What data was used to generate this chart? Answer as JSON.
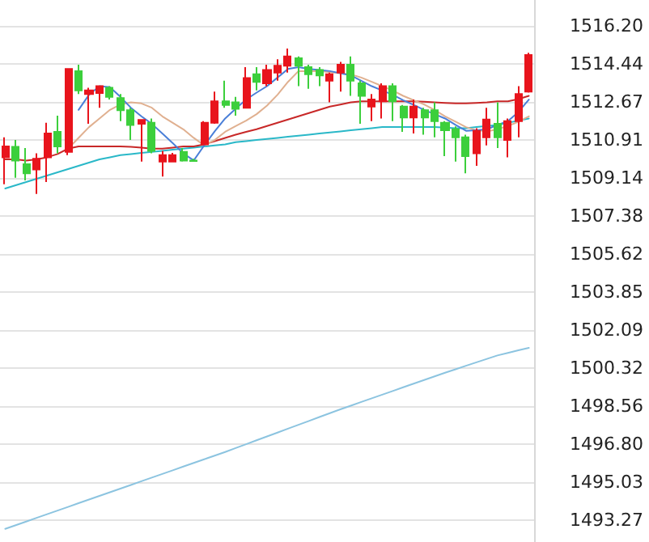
{
  "chart_data": {
    "type": "candlestick",
    "categories": [
      null,
      null,
      null,
      null,
      null,
      null,
      null,
      null,
      null,
      null,
      null,
      null,
      null,
      null,
      null,
      null,
      null,
      null,
      null,
      null,
      null,
      null,
      null,
      null,
      null,
      null,
      null,
      null,
      null,
      null,
      null,
      null,
      null,
      null,
      null,
      null,
      null,
      null,
      null,
      null,
      null,
      null,
      null,
      null,
      null,
      null,
      null,
      null,
      null,
      null,
      null
    ],
    "ohlc": [
      [
        1510.1,
        1511.03,
        1508.85,
        1510.6
      ],
      [
        1510.58,
        1510.9,
        1509.15,
        1509.95
      ],
      [
        1509.78,
        1510.53,
        1509.03,
        1509.35
      ],
      [
        1509.53,
        1510.28,
        1508.4,
        1510.03
      ],
      [
        1510.1,
        1511.7,
        1508.95,
        1511.2
      ],
      [
        1511.28,
        1512.03,
        1510.28,
        1510.6
      ],
      [
        1510.35,
        1514.2,
        1510.2,
        1514.2
      ],
      [
        1514.1,
        1514.4,
        1513.03,
        1513.2
      ],
      [
        1513.03,
        1513.33,
        1511.65,
        1513.2
      ],
      [
        1513.08,
        1513.4,
        1512.4,
        1513.4
      ],
      [
        1513.33,
        1513.4,
        1512.78,
        1512.9
      ],
      [
        1512.85,
        1513.03,
        1511.78,
        1512.28
      ],
      [
        1512.28,
        1512.4,
        1510.9,
        1511.6
      ],
      [
        1511.65,
        1511.83,
        1509.9,
        1511.83
      ],
      [
        1511.7,
        1511.9,
        1510.28,
        1510.4
      ],
      [
        1509.9,
        1510.4,
        1509.2,
        1510.2
      ],
      [
        1509.9,
        1510.3,
        1509.9,
        1510.2
      ],
      [
        1510.35,
        1510.53,
        1509.9,
        1509.95
      ],
      [
        1509.95,
        1510.03,
        1509.9,
        1509.93
      ],
      [
        1510.7,
        1511.78,
        1510.65,
        1511.7
      ],
      [
        1511.7,
        1513.15,
        1511.65,
        1512.7
      ],
      [
        1512.7,
        1513.65,
        1512.4,
        1512.53
      ],
      [
        1512.65,
        1512.9,
        1512.03,
        1512.35
      ],
      [
        1512.4,
        1514.28,
        1512.4,
        1513.78
      ],
      [
        1513.95,
        1514.28,
        1513.2,
        1513.6
      ],
      [
        1513.53,
        1514.4,
        1513.4,
        1514.15
      ],
      [
        1514.03,
        1514.65,
        1513.65,
        1514.35
      ],
      [
        1514.35,
        1515.15,
        1514.03,
        1514.78
      ],
      [
        1514.7,
        1514.78,
        1513.4,
        1514.35
      ],
      [
        1514.28,
        1514.4,
        1513.28,
        1513.95
      ],
      [
        1514.15,
        1514.28,
        1513.4,
        1513.9
      ],
      [
        1513.65,
        1514.03,
        1512.65,
        1513.95
      ],
      [
        1514.03,
        1514.53,
        1513.15,
        1514.4
      ],
      [
        1514.4,
        1514.78,
        1512.95,
        1513.65
      ],
      [
        1513.53,
        1513.65,
        1511.65,
        1512.95
      ],
      [
        1512.45,
        1513.03,
        1511.78,
        1512.78
      ],
      [
        1512.7,
        1513.53,
        1511.9,
        1513.4
      ],
      [
        1513.4,
        1513.53,
        1511.78,
        1512.7
      ],
      [
        1512.45,
        1512.53,
        1511.28,
        1511.95
      ],
      [
        1511.95,
        1512.78,
        1511.2,
        1512.45
      ],
      [
        1512.28,
        1512.4,
        1511.15,
        1511.95
      ],
      [
        1512.28,
        1512.65,
        1511.03,
        1511.78
      ],
      [
        1511.7,
        1511.78,
        1510.15,
        1511.35
      ],
      [
        1511.4,
        1511.53,
        1509.9,
        1511.03
      ],
      [
        1511.03,
        1511.15,
        1509.35,
        1510.15
      ],
      [
        1510.28,
        1511.45,
        1509.7,
        1511.33
      ],
      [
        1511.03,
        1512.4,
        1510.65,
        1511.85
      ],
      [
        1511.65,
        1512.65,
        1510.53,
        1511.03
      ],
      [
        1510.9,
        1511.9,
        1510.1,
        1511.78
      ],
      [
        1511.78,
        1513.4,
        1511.03,
        1513.03
      ],
      [
        1513.15,
        1514.95,
        1513.1,
        1514.85
      ]
    ],
    "colors": [
      "#e8141c",
      "#3ccf3c",
      "#3ccf3c",
      "#e8141c",
      "#e8141c",
      "#3ccf3c",
      "#e8141c",
      "#3ccf3c",
      "#e8141c",
      "#e8141c",
      "#3ccf3c",
      "#3ccf3c",
      "#3ccf3c",
      "#e8141c",
      "#3ccf3c",
      "#e8141c",
      "#e8141c",
      "#3ccf3c",
      "#3ccf3c",
      "#e8141c",
      "#e8141c",
      "#3ccf3c",
      "#3ccf3c",
      "#e8141c",
      "#3ccf3c",
      "#e8141c",
      "#e8141c",
      "#e8141c",
      "#3ccf3c",
      "#3ccf3c",
      "#3ccf3c",
      "#e8141c",
      "#e8141c",
      "#3ccf3c",
      "#3ccf3c",
      "#e8141c",
      "#e8141c",
      "#3ccf3c",
      "#3ccf3c",
      "#e8141c",
      "#3ccf3c",
      "#3ccf3c",
      "#3ccf3c",
      "#3ccf3c",
      "#3ccf3c",
      "#e8141c",
      "#e8141c",
      "#3ccf3c",
      "#e8141c",
      "#e8141c",
      "#e8141c"
    ],
    "series": [
      {
        "type": "line",
        "color": "#8cc4e0",
        "values": [
          1492.85,
          1493.02,
          1493.19,
          1493.36,
          1493.53,
          1493.7,
          1493.87,
          1494.04,
          1494.21,
          1494.38,
          1494.55,
          1494.72,
          1494.89,
          1495.06,
          1495.23,
          1495.4,
          1495.57,
          1495.74,
          1495.91,
          1496.08,
          1496.25,
          1496.42,
          1496.6,
          1496.78,
          1496.96,
          1497.14,
          1497.32,
          1497.5,
          1497.68,
          1497.86,
          1498.04,
          1498.22,
          1498.4,
          1498.57,
          1498.74,
          1498.91,
          1499.08,
          1499.25,
          1499.42,
          1499.59,
          1499.76,
          1499.93,
          1500.1,
          1500.26,
          1500.42,
          1500.58,
          1500.74,
          1500.9,
          1501.02,
          1501.14,
          1501.25
        ]
      },
      {
        "type": "line",
        "color": "#2ab8c8",
        "values": [
          1508.65,
          1508.8,
          1508.95,
          1509.1,
          1509.25,
          1509.4,
          1509.55,
          1509.7,
          1509.85,
          1510.0,
          1510.1,
          1510.2,
          1510.25,
          1510.3,
          1510.35,
          1510.4,
          1510.45,
          1510.5,
          1510.55,
          1510.6,
          1510.65,
          1510.7,
          1510.8,
          1510.85,
          1510.9,
          1510.95,
          1511.0,
          1511.05,
          1511.1,
          1511.15,
          1511.2,
          1511.25,
          1511.3,
          1511.35,
          1511.4,
          1511.45,
          1511.5,
          1511.5,
          1511.5,
          1511.5,
          1511.5,
          1511.5,
          1511.48,
          1511.45,
          1511.45,
          1511.5,
          1511.55,
          1511.6,
          1511.7,
          1511.8,
          1511.9
        ]
      },
      {
        "type": "line",
        "color": "#c82828",
        "values": [
          1510.0,
          1510.0,
          1509.95,
          1510.0,
          1510.1,
          1510.25,
          1510.5,
          1510.6,
          1510.6,
          1510.6,
          1510.6,
          1510.6,
          1510.58,
          1510.55,
          1510.5,
          1510.5,
          1510.55,
          1510.6,
          1510.6,
          1510.7,
          1510.85,
          1511.0,
          1511.15,
          1511.28,
          1511.4,
          1511.55,
          1511.7,
          1511.85,
          1512.0,
          1512.15,
          1512.3,
          1512.45,
          1512.55,
          1512.65,
          1512.7,
          1512.7,
          1512.7,
          1512.7,
          1512.7,
          1512.7,
          1512.68,
          1512.65,
          1512.62,
          1512.6,
          1512.6,
          1512.62,
          1512.65,
          1512.7,
          1512.7,
          1512.8,
          1512.95
        ]
      },
      {
        "type": "line",
        "color": "#e0b090",
        "values": [
          null,
          null,
          null,
          null,
          null,
          null,
          1510.5,
          1511.0,
          1511.5,
          1511.9,
          1512.3,
          1512.55,
          1512.65,
          1512.6,
          1512.4,
          1512.0,
          1511.7,
          1511.4,
          1511.0,
          1510.65,
          1510.9,
          1511.28,
          1511.55,
          1511.8,
          1512.1,
          1512.5,
          1513.0,
          1513.6,
          1514.1,
          1514.1,
          1514.1,
          1514.05,
          1514.0,
          1513.95,
          1513.8,
          1513.6,
          1513.4,
          1513.2,
          1512.95,
          1512.75,
          1512.55,
          1512.3,
          1512.0,
          1511.75,
          1511.5,
          1511.35,
          1511.3,
          1511.4,
          1511.55,
          1511.75,
          1512.0
        ]
      },
      {
        "type": "line",
        "color": "#4a7fd8",
        "values": [
          null,
          null,
          null,
          null,
          null,
          null,
          null,
          1512.3,
          1513.0,
          1513.4,
          1513.35,
          1512.9,
          1512.4,
          1512.0,
          1511.65,
          1511.2,
          1510.75,
          1510.28,
          1509.95,
          1510.65,
          1511.3,
          1511.9,
          1512.35,
          1512.78,
          1513.1,
          1513.4,
          1513.8,
          1514.2,
          1514.28,
          1514.2,
          1514.15,
          1514.1,
          1514.0,
          1513.9,
          1513.65,
          1513.4,
          1513.2,
          1513.0,
          1512.75,
          1512.53,
          1512.3,
          1512.1,
          1511.9,
          1511.6,
          1511.33,
          1511.35,
          1511.4,
          1511.6,
          1511.78,
          1512.2,
          1512.78
        ]
      }
    ],
    "ylim": [
      1492.24,
      1517.4
    ],
    "yticks": [
      {
        "value": 1516.2,
        "label": "1516.20"
      },
      {
        "value": 1514.44,
        "label": "1514.44"
      },
      {
        "value": 1512.67,
        "label": "1512.67"
      },
      {
        "value": 1510.91,
        "label": "1510.91"
      },
      {
        "value": 1509.14,
        "label": "1509.14"
      },
      {
        "value": 1507.38,
        "label": "1507.38"
      },
      {
        "value": 1505.62,
        "label": "1505.62"
      },
      {
        "value": 1503.85,
        "label": "1503.85"
      },
      {
        "value": 1502.09,
        "label": "1502.09"
      },
      {
        "value": 1500.32,
        "label": "1500.32"
      },
      {
        "value": 1498.56,
        "label": "1498.56"
      },
      {
        "value": 1496.8,
        "label": "1496.80"
      },
      {
        "value": 1495.03,
        "label": "1495.03"
      },
      {
        "value": 1493.27,
        "label": "1493.27"
      }
    ],
    "grid": "y",
    "tick_labels": "y",
    "line_style": "solid"
  }
}
